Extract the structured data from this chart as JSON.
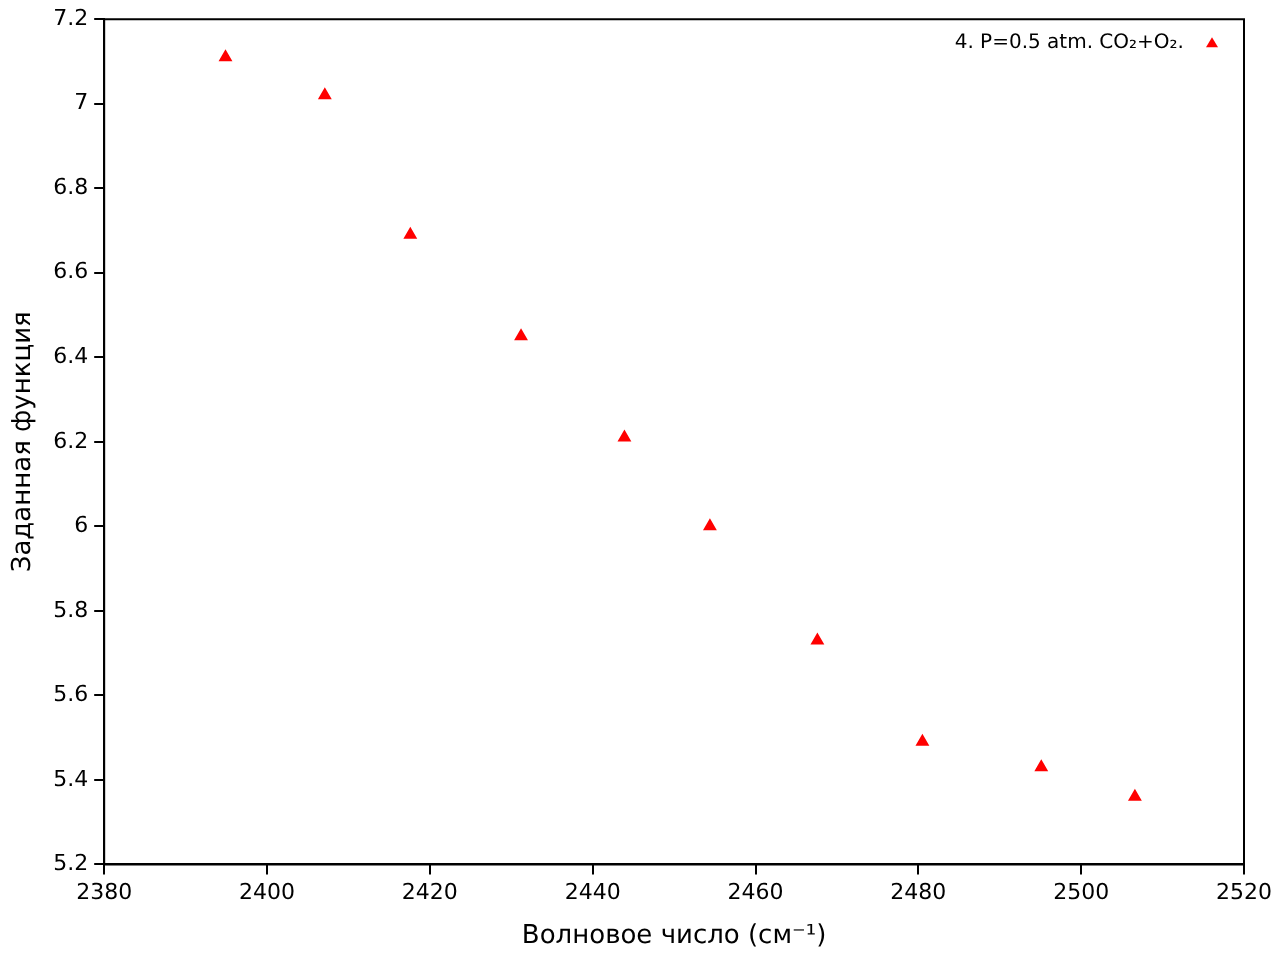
{
  "chart_data": {
    "type": "scatter",
    "xlabel": "Волновое число (см⁻¹)",
    "ylabel": "Заданная функция",
    "xlim": [
      2380,
      2520
    ],
    "xticks": [
      2380,
      2400,
      2420,
      2440,
      2460,
      2480,
      2500,
      2520
    ],
    "ylim": [
      5.2,
      7.2
    ],
    "yticks": [
      5.2,
      5.4,
      5.6,
      5.8,
      6,
      6.2,
      6.4,
      6.6,
      6.8,
      7,
      7.2
    ],
    "grid": false,
    "legend": "top right",
    "marker": "triangle",
    "x": [
      2394.9,
      2407.1,
      2417.6,
      2431.2,
      2443.9,
      2454.4,
      2467.6,
      2480.5,
      2495.1,
      2506.6
    ],
    "series": [
      {
        "name": "4. P=0.5 atm. CO₂+O₂.",
        "color": "#ff0000",
        "values": [
          7.11,
          7.02,
          6.69,
          6.45,
          6.21,
          6.0,
          5.73,
          5.49,
          5.43,
          5.36
        ]
      }
    ]
  }
}
